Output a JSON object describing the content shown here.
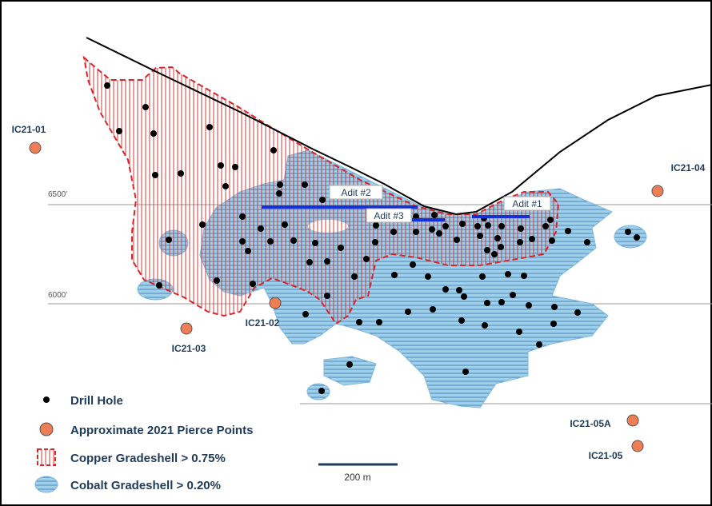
{
  "elevations": [
    "6500'",
    "6000'"
  ],
  "pierce_points": [
    "IC21-01",
    "IC21-02",
    "IC21-03",
    "IC21-04",
    "IC21-05A",
    "IC21-05"
  ],
  "adits": [
    "Adit #1",
    "Adit #2",
    "Adit #3"
  ],
  "legend": [
    "Drill Hole",
    "Approximate 2021 Pierce Points",
    "Copper Gradeshell > 0.75%",
    "Cobalt Gradeshell > 0.20%"
  ],
  "scale_bar": "200 m"
}
